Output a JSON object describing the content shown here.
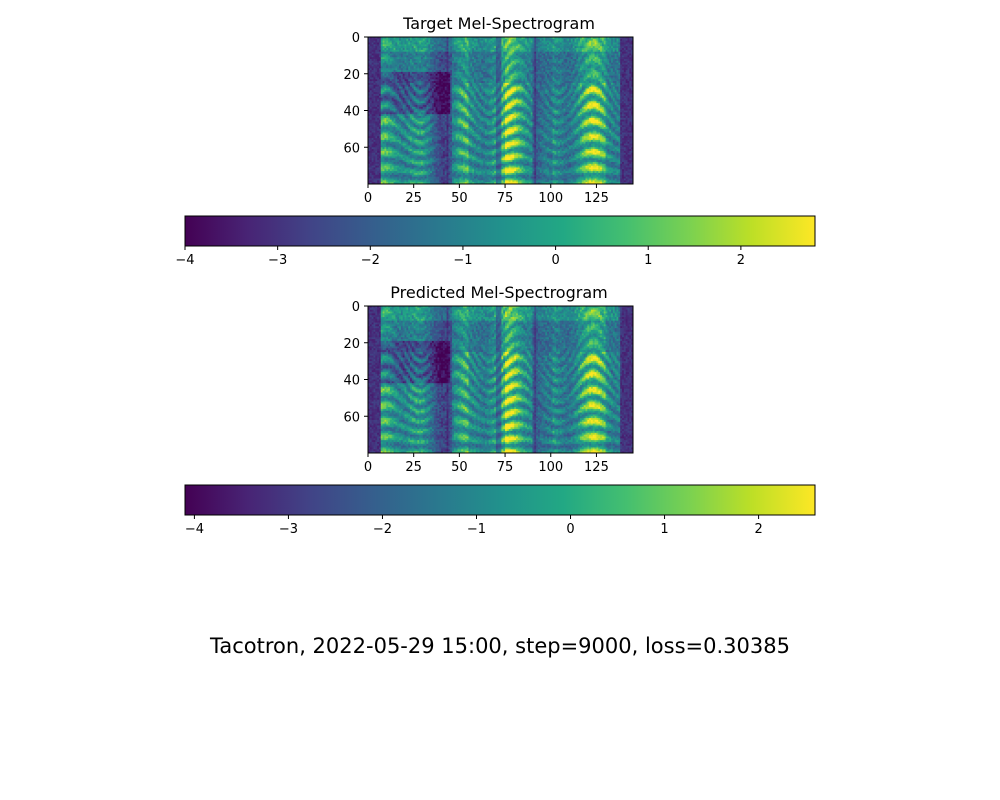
{
  "footer": "Tacotron, 2022-05-29 15:00, step=9000, loss=0.30385",
  "chart_data": [
    {
      "type": "heatmap",
      "title": "Target Mel-Spectrogram",
      "colormap": "viridis",
      "x_range": [
        0,
        145
      ],
      "y_range": [
        0,
        80
      ],
      "y_inverted": true,
      "xticks": [
        "0",
        "25",
        "50",
        "75",
        "100",
        "125"
      ],
      "yticks": [
        "0",
        "20",
        "40",
        "60"
      ],
      "colorbar": {
        "orientation": "horizontal",
        "range": [
          -4,
          2.8
        ],
        "ticks": [
          "−4",
          "−3",
          "−2",
          "−1",
          "0",
          "1",
          "2"
        ]
      },
      "seed": 7
    },
    {
      "type": "heatmap",
      "title": "Predicted Mel-Spectrogram",
      "colormap": "viridis",
      "x_range": [
        0,
        145
      ],
      "y_range": [
        0,
        80
      ],
      "y_inverted": true,
      "xticks": [
        "0",
        "25",
        "50",
        "75",
        "100",
        "125"
      ],
      "yticks": [
        "0",
        "20",
        "40",
        "60"
      ],
      "colorbar": {
        "orientation": "horizontal",
        "range": [
          -4.1,
          2.6
        ],
        "ticks": [
          "−4",
          "−3",
          "−2",
          "−1",
          "0",
          "1",
          "2"
        ]
      },
      "seed": 11
    }
  ]
}
